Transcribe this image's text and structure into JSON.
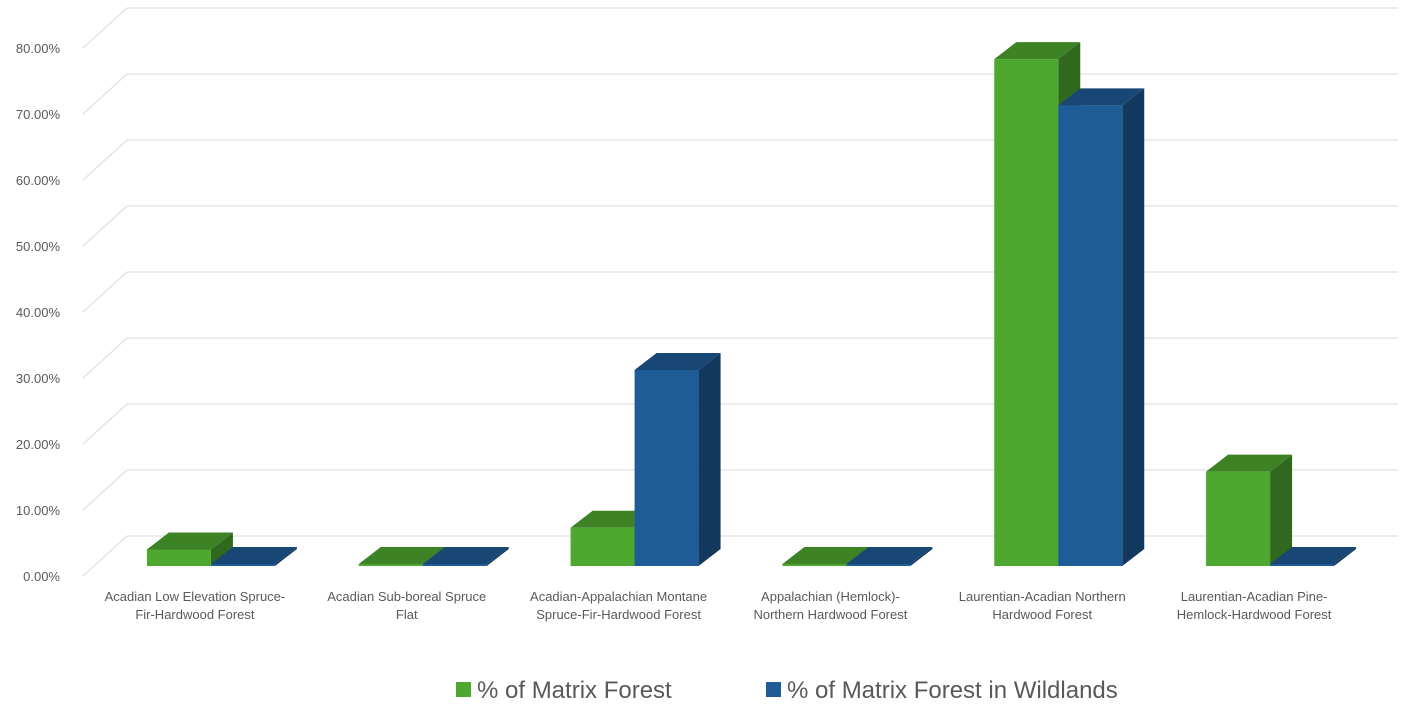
{
  "chart_data": {
    "type": "bar",
    "style": "3d-clustered-column",
    "title": "",
    "xlabel": "",
    "ylabel": "",
    "ylim": [
      0,
      0.8
    ],
    "ytick_step": 0.1,
    "ytick_labels": [
      "0.00%",
      "10.00%",
      "20.00%",
      "30.00%",
      "40.00%",
      "50.00%",
      "60.00%",
      "70.00%",
      "80.00%"
    ],
    "grid": true,
    "legend_position": "bottom",
    "categories": [
      "Acadian Low Elevation Spruce-Fir-Hardwood Forest",
      "Acadian Sub-boreal Spruce Flat",
      "Acadian-Appalachian Montane Spruce-Fir-Hardwood Forest",
      "Appalachian (Hemlock)-Northern Hardwood Forest",
      "Laurentian-Acadian Northern Hardwood Forest",
      "Laurentian-Acadian Pine-Hemlock-Hardwood Forest"
    ],
    "category_lines": [
      [
        "Acadian Low Elevation Spruce-",
        "Fir-Hardwood Forest"
      ],
      [
        "Acadian Sub-boreal Spruce",
        "Flat"
      ],
      [
        "Acadian-Appalachian Montane",
        "Spruce-Fir-Hardwood Forest"
      ],
      [
        "Appalachian (Hemlock)-",
        "Northern Hardwood Forest"
      ],
      [
        "Laurentian-Acadian Northern",
        "Hardwood Forest"
      ],
      [
        "Laurentian-Acadian Pine-",
        "Hemlock-Hardwood Forest"
      ]
    ],
    "series": [
      {
        "name": "% of Matrix Forest",
        "color": "#4ea72e",
        "values": [
          0.025,
          0.003,
          0.058,
          0.001,
          0.768,
          0.143
        ]
      },
      {
        "name": "% of Matrix Forest in Wildlands",
        "color": "#1f5b96",
        "values": [
          0.001,
          0.0,
          0.297,
          0.0,
          0.698,
          0.002
        ]
      }
    ]
  }
}
